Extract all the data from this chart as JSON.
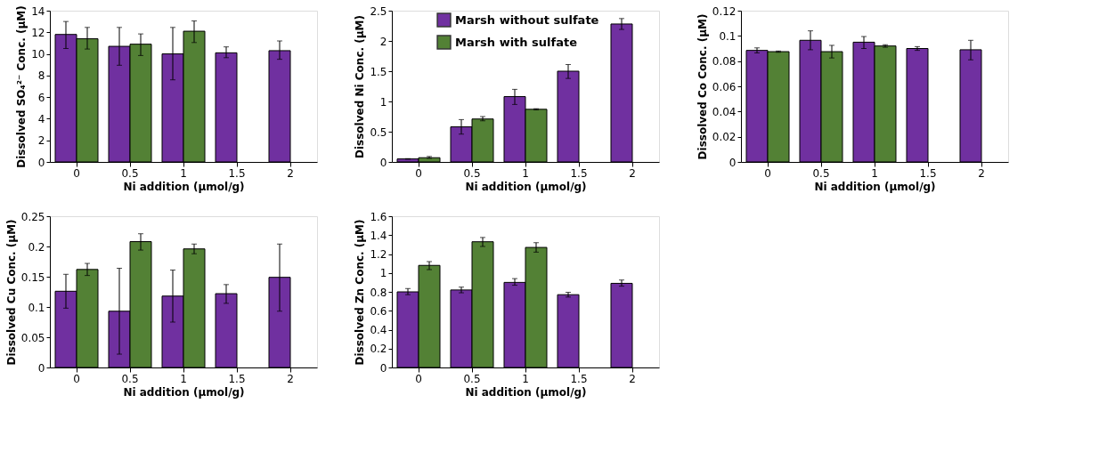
{
  "chart_data": [
    {
      "type": "bar",
      "categories": [
        "0",
        "0.5",
        "1",
        "1.5",
        "2"
      ],
      "xlabel": "Ni addition (μmol/g)",
      "ylabel": "Dissolved SO₄²⁻ Conc. (μM)",
      "ylim": [
        0,
        14
      ],
      "yticks": [
        0,
        2,
        4,
        6,
        8,
        10,
        12,
        14
      ],
      "grid": false,
      "legend": false,
      "series": [
        {
          "color": "#7030a0",
          "values": [
            11.8,
            10.7,
            10.0,
            10.1,
            10.3
          ],
          "errors": [
            [
              10.5,
              13.0
            ],
            [
              8.95,
              12.45
            ],
            [
              7.6,
              12.45
            ],
            [
              9.65,
              10.65
            ],
            [
              9.5,
              11.2
            ]
          ]
        },
        {
          "color": "#538135",
          "values": [
            11.4,
            10.9,
            12.1,
            null,
            null
          ],
          "errors": [
            [
              10.45,
              12.45
            ],
            [
              9.85,
              11.85
            ],
            [
              11.05,
              13.05
            ],
            null,
            null
          ]
        }
      ]
    },
    {
      "type": "bar",
      "categories": [
        "0",
        "0.5",
        "1",
        "1.5",
        "2"
      ],
      "xlabel": "Ni addition (μmol/g)",
      "ylabel": "Dissolved Ni Conc. (μM)",
      "ylim": [
        0,
        2.5
      ],
      "yticks": [
        0,
        0.5,
        1,
        1.5,
        2,
        2.5
      ],
      "grid": false,
      "legend": "top",
      "series": [
        {
          "name": "Marsh without sulfate",
          "color": "#7030a0",
          "values": [
            0.05,
            0.58,
            1.08,
            1.5,
            2.28
          ],
          "errors": [
            [
              0.045,
              0.055
            ],
            [
              0.46,
              0.7
            ],
            [
              0.95,
              1.2
            ],
            [
              1.38,
              1.61
            ],
            [
              2.19,
              2.37
            ]
          ]
        },
        {
          "name": "Marsh with sulfate",
          "color": "#538135",
          "values": [
            0.07,
            0.71,
            0.87,
            null,
            null
          ],
          "errors": [
            [
              0.06,
              0.09
            ],
            [
              0.68,
              0.75
            ],
            [
              0.86,
              0.88
            ],
            null,
            null
          ]
        }
      ]
    },
    {
      "type": "bar",
      "categories": [
        "0",
        "0.5",
        "1",
        "1.5",
        "2"
      ],
      "xlabel": "Ni addition (μmol/g)",
      "ylabel": "Dissolved Co Conc. (μM)",
      "ylim": [
        0,
        0.12
      ],
      "yticks": [
        0,
        0.02,
        0.04,
        0.06,
        0.08,
        0.1,
        0.12
      ],
      "grid": false,
      "legend": false,
      "series": [
        {
          "color": "#7030a0",
          "values": [
            0.0885,
            0.0965,
            0.095,
            0.09,
            0.089
          ],
          "errors": [
            [
              0.0865,
              0.0905
            ],
            [
              0.089,
              0.104
            ],
            [
              0.09,
              0.0995
            ],
            [
              0.0885,
              0.0915
            ],
            [
              0.081,
              0.0965
            ]
          ]
        },
        {
          "color": "#538135",
          "values": [
            0.0875,
            0.0875,
            0.092,
            null,
            null
          ],
          "errors": [
            [
              0.087,
              0.088
            ],
            [
              0.0825,
              0.0925
            ],
            [
              0.091,
              0.093
            ],
            null,
            null
          ]
        }
      ]
    },
    {
      "type": "bar",
      "categories": [
        "0",
        "0.5",
        "1",
        "1.5",
        "2"
      ],
      "xlabel": "Ni addition (μmol/g)",
      "ylabel": "Dissolved Cu Conc. (μM)",
      "ylim": [
        0,
        0.25
      ],
      "yticks": [
        0,
        0.05,
        0.1,
        0.15,
        0.2,
        0.25
      ],
      "grid": false,
      "legend": false,
      "series": [
        {
          "color": "#7030a0",
          "values": [
            0.126,
            0.093,
            0.118,
            0.122,
            0.149
          ],
          "errors": [
            [
              0.098,
              0.154
            ],
            [
              0.022,
              0.164
            ],
            [
              0.075,
              0.161
            ],
            [
              0.106,
              0.137
            ],
            [
              0.093,
              0.204
            ]
          ]
        },
        {
          "color": "#538135",
          "values": [
            0.162,
            0.208,
            0.196,
            null,
            null
          ],
          "errors": [
            [
              0.152,
              0.172
            ],
            [
              0.194,
              0.221
            ],
            [
              0.188,
              0.204
            ],
            null,
            null
          ]
        }
      ]
    },
    {
      "type": "bar",
      "categories": [
        "0",
        "0.5",
        "1",
        "1.5",
        "2"
      ],
      "xlabel": "Ni addition (μmol/g)",
      "ylabel": "Dissolved Zn Conc. (μM)",
      "ylim": [
        0,
        1.6
      ],
      "yticks": [
        0,
        0.2,
        0.4,
        0.6,
        0.8,
        1,
        1.2,
        1.4,
        1.6
      ],
      "grid": false,
      "legend": false,
      "series": [
        {
          "color": "#7030a0",
          "values": [
            0.8,
            0.82,
            0.9,
            0.77,
            0.89
          ],
          "errors": [
            [
              0.77,
              0.835
            ],
            [
              0.79,
              0.85
            ],
            [
              0.87,
              0.94
            ],
            [
              0.745,
              0.795
            ],
            [
              0.86,
              0.925
            ]
          ]
        },
        {
          "color": "#538135",
          "values": [
            1.08,
            1.33,
            1.27,
            null,
            null
          ],
          "errors": [
            [
              1.035,
              1.12
            ],
            [
              1.28,
              1.375
            ],
            [
              1.22,
              1.32
            ],
            null,
            null
          ]
        }
      ]
    }
  ]
}
